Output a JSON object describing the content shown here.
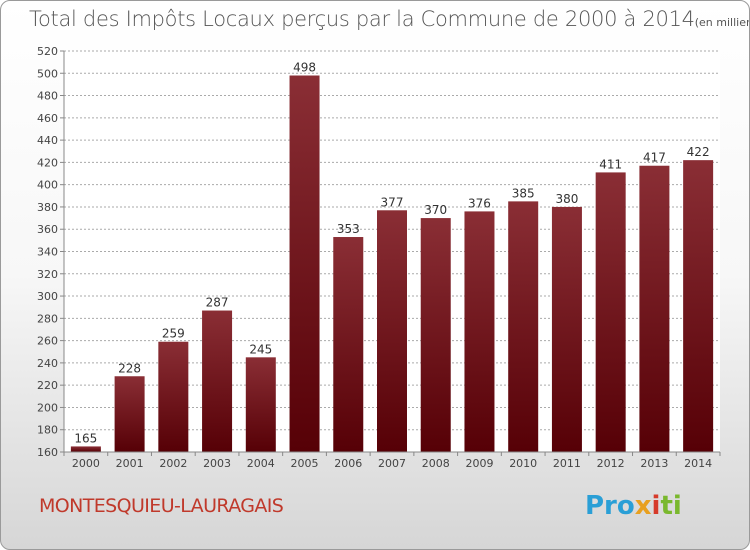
{
  "title": "Total des Impôts Locaux perçus par la Commune de 2000 à 2014",
  "unit": "(en milliers d'€)",
  "commune": "MONTESQUIEU-LAURAGAIS",
  "logo": {
    "p1": "Pro",
    "p2": "x",
    "p3": "i",
    "p4": "ti"
  },
  "colors": {
    "bar": "#6e1a20",
    "grid": "#aaaaaa"
  },
  "chart_data": {
    "type": "bar",
    "categories": [
      "2000",
      "2001",
      "2002",
      "2003",
      "2004",
      "2005",
      "2006",
      "2007",
      "2008",
      "2009",
      "2010",
      "2011",
      "2012",
      "2013",
      "2014"
    ],
    "values": [
      165,
      228,
      259,
      287,
      245,
      498,
      353,
      377,
      370,
      376,
      385,
      380,
      411,
      417,
      422
    ],
    "data_labels": [
      "165",
      "228",
      "259",
      "287",
      "245",
      "498",
      "353",
      "377",
      "370",
      "376",
      "385",
      "380",
      "411",
      "417",
      "422"
    ],
    "yticks": [
      "160",
      "180",
      "200",
      "220",
      "240",
      "260",
      "280",
      "300",
      "320",
      "340",
      "360",
      "380",
      "400",
      "420",
      "440",
      "460",
      "480",
      "500",
      "520"
    ],
    "ylim": [
      160,
      520
    ],
    "grid": true
  }
}
